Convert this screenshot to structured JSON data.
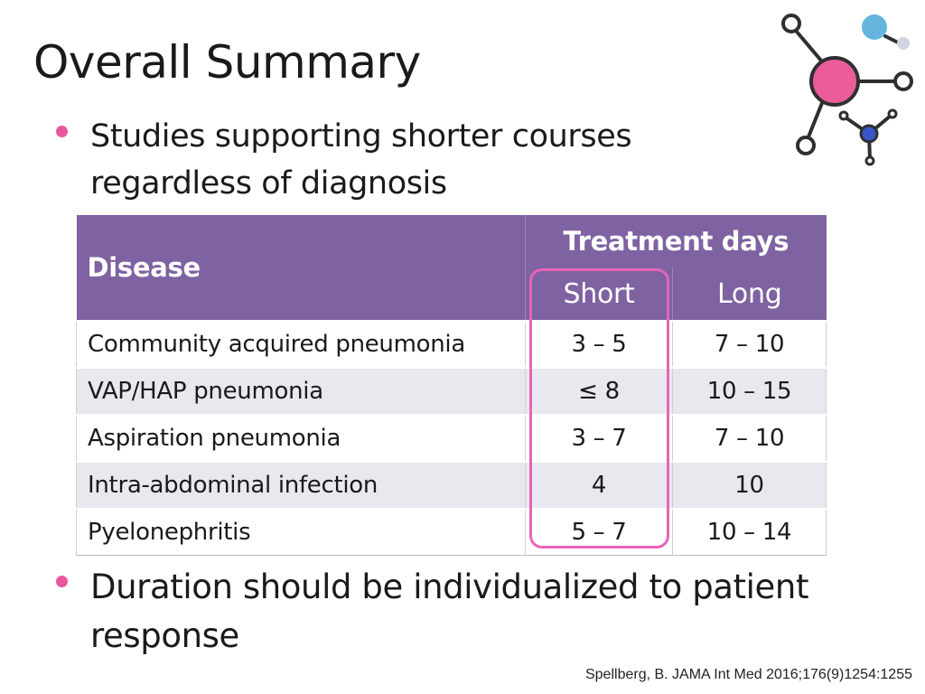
{
  "slide": {
    "title": "Overall Summary",
    "bullets": [
      "Studies supporting shorter courses regardless of diagnosis",
      "Duration should be individualized to patient response"
    ],
    "citation": "Spellberg, B. JAMA Int Med 2016;176(9)1254:1255"
  },
  "table": {
    "header_disease": "Disease",
    "header_group": "Treatment days",
    "header_short": "Short",
    "header_long": "Long",
    "rows": [
      {
        "disease": "Community acquired pneumonia",
        "short": "3 – 5",
        "long": "7 – 10"
      },
      {
        "disease": "VAP/HAP pneumonia",
        "short": "≤ 8",
        "long": "10 – 15"
      },
      {
        "disease": "Aspiration pneumonia",
        "short": "3 – 7",
        "long": "7 – 10"
      },
      {
        "disease": "Intra-abdominal infection",
        "short": "4",
        "long": "10"
      },
      {
        "disease": "Pyelonephritis",
        "short": "5 – 7",
        "long": "10 – 14"
      }
    ]
  },
  "colors": {
    "header_bg": "#7e62a1",
    "bullet": "#e8579c",
    "highlight_border": "#ea63b8",
    "row_alt": "#e9e8ef",
    "molecule_center": "#ea5c9a",
    "molecule_accent": "#4aa8d8",
    "molecule_small": "#3a56c8"
  },
  "icons": [
    "molecule-icon",
    "bullet-dot-icon"
  ]
}
